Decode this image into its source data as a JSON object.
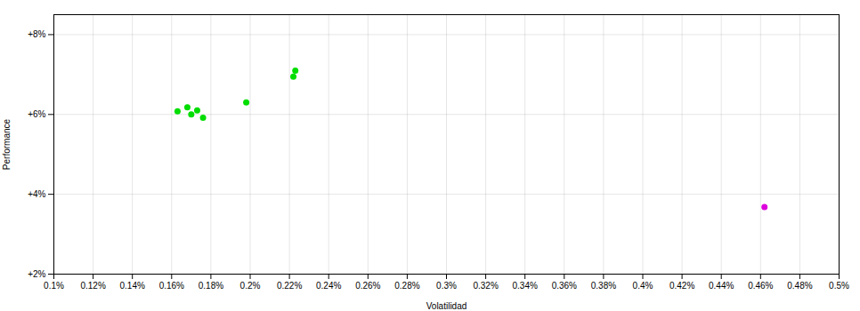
{
  "chart_data": {
    "type": "scatter",
    "xlabel": "Volatilidad",
    "ylabel": "Performance",
    "xlim": [
      0.001,
      0.005
    ],
    "ylim": [
      0.02,
      0.085
    ],
    "xticks": [
      {
        "value": 0.001,
        "label": "0.1%"
      },
      {
        "value": 0.0012,
        "label": "0.12%"
      },
      {
        "value": 0.0014,
        "label": "0.14%"
      },
      {
        "value": 0.0016,
        "label": "0.16%"
      },
      {
        "value": 0.0018,
        "label": "0.18%"
      },
      {
        "value": 0.002,
        "label": "0.2%"
      },
      {
        "value": 0.0022,
        "label": "0.22%"
      },
      {
        "value": 0.0024,
        "label": "0.24%"
      },
      {
        "value": 0.0026,
        "label": "0.26%"
      },
      {
        "value": 0.0028,
        "label": "0.28%"
      },
      {
        "value": 0.003,
        "label": "0.3%"
      },
      {
        "value": 0.0032,
        "label": "0.32%"
      },
      {
        "value": 0.0034,
        "label": "0.34%"
      },
      {
        "value": 0.0036,
        "label": "0.36%"
      },
      {
        "value": 0.0038,
        "label": "0.38%"
      },
      {
        "value": 0.004,
        "label": "0.4%"
      },
      {
        "value": 0.0042,
        "label": "0.42%"
      },
      {
        "value": 0.0044,
        "label": "0.44%"
      },
      {
        "value": 0.0046,
        "label": "0.46%"
      },
      {
        "value": 0.0048,
        "label": "0.48%"
      },
      {
        "value": 0.005,
        "label": "0.5%"
      }
    ],
    "yticks": [
      {
        "value": 0.02,
        "label": "+2%"
      },
      {
        "value": 0.04,
        "label": "+4%"
      },
      {
        "value": 0.06,
        "label": "+6%"
      },
      {
        "value": 0.08,
        "label": "+8%"
      }
    ],
    "grid": true,
    "series": [
      {
        "color": "#00dd00",
        "x": [
          0.00163,
          0.00168,
          0.0017,
          0.00173,
          0.00176,
          0.00198,
          0.00222,
          0.00223
        ],
        "values": [
          0.0608,
          0.0618,
          0.06,
          0.061,
          0.0592,
          0.063,
          0.0695,
          0.071
        ]
      },
      {
        "color": "#dd00dd",
        "x": [
          0.00462
        ],
        "values": [
          0.0368
        ]
      }
    ]
  }
}
